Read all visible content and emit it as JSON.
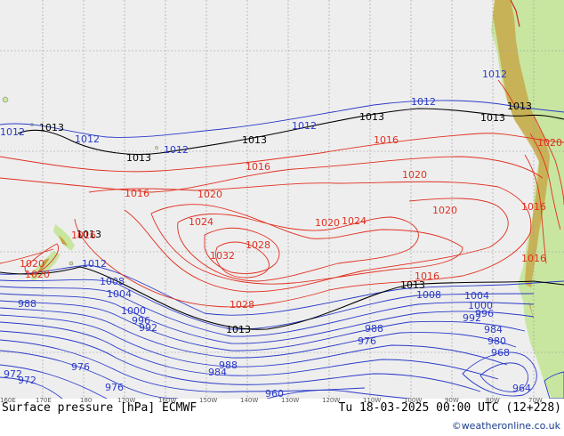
{
  "footer": {
    "title": "Surface pressure [hPa] ECMWF",
    "valid_time": "Tu 18-03-2025 00:00 UTC (12+228)",
    "credit": "©weatheronline.co.uk"
  },
  "longitude_labels": [
    "160E",
    "170E",
    "180",
    "170W",
    "160W",
    "150W",
    "140W",
    "130W",
    "120W",
    "110W",
    "100W",
    "90W",
    "80W",
    "70W"
  ],
  "isobar_labels": {
    "black": [
      "1013",
      "1013",
      "1013",
      "1013",
      "1013",
      "1013",
      "1013",
      "1013",
      "1013"
    ],
    "red": [
      "1016",
      "1016",
      "1016",
      "1016",
      "1016",
      "1016",
      "1016",
      "1020",
      "1020",
      "1020",
      "1020",
      "1020",
      "1020",
      "1020",
      "1024",
      "1024",
      "1028",
      "1028",
      "1032"
    ],
    "blue": [
      "1012",
      "1012",
      "1012",
      "1012",
      "1012",
      "1012",
      "1012",
      "1008",
      "1008",
      "1004",
      "1004",
      "1000",
      "1000",
      "996",
      "996",
      "992",
      "992",
      "988",
      "988",
      "988",
      "984",
      "984",
      "980",
      "976",
      "976",
      "976",
      "972",
      "972",
      "968",
      "964",
      "960"
    ]
  },
  "colors": {
    "ocean": "#eeeeee",
    "land": "#c8e6a0",
    "terrain": "#c8a040",
    "grid": "#9a9a9a",
    "isobar_high": "#e03020",
    "isobar_low": "#2a3ac8",
    "isobar_std": "#000000"
  }
}
